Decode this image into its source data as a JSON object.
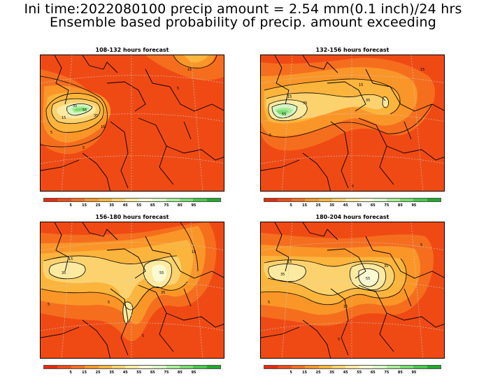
{
  "title": {
    "line1": "Ini time:2022080100 precip amount = 2.54 mm(0.1 inch)/24 hrs",
    "line2": "Ensemble based probability of precip. amount exceeding"
  },
  "colorbar": {
    "colors": [
      "#e8280a",
      "#f04a14",
      "#f56e1e",
      "#fa9628",
      "#fbb43c",
      "#fcd26e",
      "#fbeaa0",
      "#fafad2",
      "#d8f5c8",
      "#a8ec96",
      "#78dc6e",
      "#46c846",
      "#1eaa28"
    ],
    "tick_labels": [
      "5",
      "15",
      "25",
      "35",
      "45",
      "55",
      "65",
      "75",
      "85",
      "95"
    ]
  },
  "panels": [
    {
      "title": "108-132 hours forecast",
      "contour_labels": [
        "15",
        "35",
        "55",
        "5",
        "15",
        "35",
        "15",
        "5",
        "5"
      ]
    },
    {
      "title": "132-156 hours forecast",
      "contour_labels": [
        "15",
        "35",
        "55",
        "5",
        "15",
        "35",
        "15",
        "5"
      ]
    },
    {
      "title": "156-180 hours forecast",
      "contour_labels": [
        "15",
        "35",
        "55",
        "5",
        "35",
        "5",
        "15",
        "5"
      ]
    },
    {
      "title": "180-204 hours forecast",
      "contour_labels": [
        "15",
        "35",
        "55",
        "5",
        "35",
        "15",
        "5",
        "5"
      ]
    }
  ]
}
